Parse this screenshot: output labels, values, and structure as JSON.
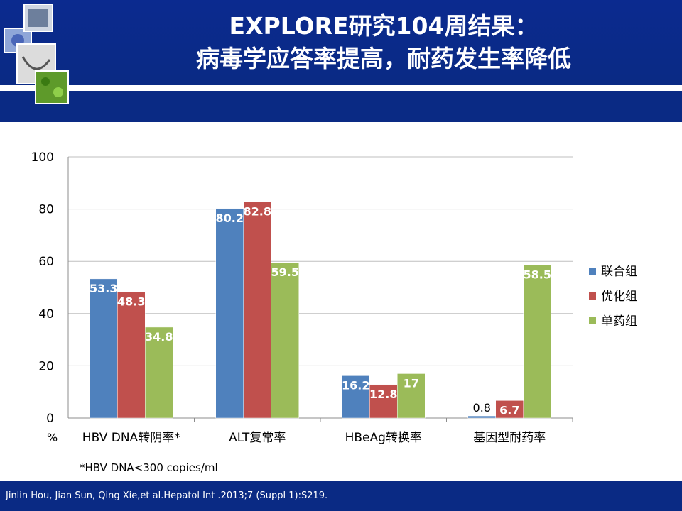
{
  "title": {
    "line1": "EXPLORE研究104周结果：",
    "line2": "病毒学应答率提高，耐药发生率降低"
  },
  "footnote": "*HBV DNA<300 copies/ml",
  "footer": "Jinlin Hou, Jian Sun, Qing Xie,et al.Hepatol Int .2013;7 (Suppl 1):S219.",
  "logo_icons": [
    "flower-image-icon",
    "stethoscope-image-icon",
    "cells-image-icon",
    "photo-collage-icon"
  ],
  "colors": {
    "header": "#0a2a84",
    "series": [
      "#4f81bd",
      "#c0504d",
      "#9bbb59"
    ]
  },
  "chart_data": {
    "type": "bar",
    "ylabel": "%",
    "ylim": [
      0,
      100
    ],
    "yticks": [
      0,
      20,
      40,
      60,
      80,
      100
    ],
    "grid": true,
    "legend_position": "right",
    "categories": [
      "HBV DNA转阴率*",
      "ALT复常率",
      "HBeAg转换率",
      "基因型耐药率"
    ],
    "series": [
      {
        "name": "联合组",
        "color": "#4f81bd",
        "values": [
          53.3,
          80.2,
          16.2,
          0.8
        ],
        "labels": [
          "53.3",
          "80.2",
          "16.2",
          "0.8"
        ]
      },
      {
        "name": "优化组",
        "color": "#c0504d",
        "values": [
          48.3,
          82.8,
          12.8,
          6.7
        ],
        "labels": [
          "48.3",
          "82.8",
          "12.8",
          "6.7"
        ]
      },
      {
        "name": "单药组",
        "color": "#9bbb59",
        "values": [
          34.8,
          59.5,
          17,
          58.5
        ],
        "labels": [
          "34.8",
          "59.5",
          "17",
          "58.5"
        ]
      }
    ]
  }
}
